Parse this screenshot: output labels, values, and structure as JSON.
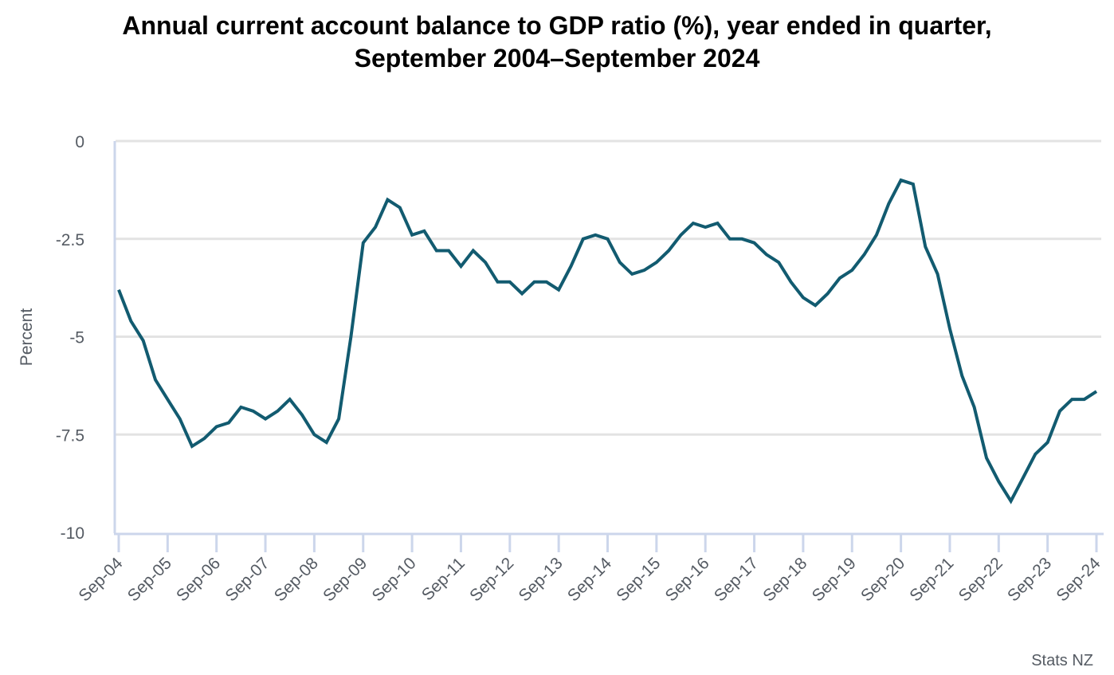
{
  "chart_data": {
    "type": "line",
    "title": "Annual current account balance to GDP ratio (%), year ended in quarter,",
    "subtitle": "September 2004–September 2024",
    "xlabel": "",
    "ylabel": "Percent",
    "ylim": [
      -10,
      0
    ],
    "yticks": [
      0,
      -2.5,
      -5,
      -7.5,
      -10
    ],
    "ytick_labels": [
      "0",
      "-2.5",
      "-5",
      "-7.5",
      "-10"
    ],
    "grid": true,
    "legend": "none",
    "source": "Stats NZ",
    "line_color": "#125b70",
    "xtick_labels": [
      "Sep-04",
      "Sep-05",
      "Sep-06",
      "Sep-07",
      "Sep-08",
      "Sep-09",
      "Sep-10",
      "Sep-11",
      "Sep-12",
      "Sep-13",
      "Sep-14",
      "Sep-15",
      "Sep-16",
      "Sep-17",
      "Sep-18",
      "Sep-19",
      "Sep-20",
      "Sep-21",
      "Sep-22",
      "Sep-23",
      "Sep-24"
    ],
    "x": [
      "Sep-04",
      "Dec-04",
      "Mar-05",
      "Jun-05",
      "Sep-05",
      "Dec-05",
      "Mar-06",
      "Jun-06",
      "Sep-06",
      "Dec-06",
      "Mar-07",
      "Jun-07",
      "Sep-07",
      "Dec-07",
      "Mar-08",
      "Jun-08",
      "Sep-08",
      "Dec-08",
      "Mar-09",
      "Jun-09",
      "Sep-09",
      "Dec-09",
      "Mar-10",
      "Jun-10",
      "Sep-10",
      "Dec-10",
      "Mar-11",
      "Jun-11",
      "Sep-11",
      "Dec-11",
      "Mar-12",
      "Jun-12",
      "Sep-12",
      "Dec-12",
      "Mar-13",
      "Jun-13",
      "Sep-13",
      "Dec-13",
      "Mar-14",
      "Jun-14",
      "Sep-14",
      "Dec-14",
      "Mar-15",
      "Jun-15",
      "Sep-15",
      "Dec-15",
      "Mar-16",
      "Jun-16",
      "Sep-16",
      "Dec-16",
      "Mar-17",
      "Jun-17",
      "Sep-17",
      "Dec-17",
      "Mar-18",
      "Jun-18",
      "Sep-18",
      "Dec-18",
      "Mar-19",
      "Jun-19",
      "Sep-19",
      "Dec-19",
      "Mar-20",
      "Jun-20",
      "Sep-20",
      "Dec-20",
      "Mar-21",
      "Jun-21",
      "Sep-21",
      "Dec-21",
      "Mar-22",
      "Jun-22",
      "Sep-22",
      "Dec-22",
      "Mar-23",
      "Jun-23",
      "Sep-23",
      "Dec-23",
      "Mar-24",
      "Jun-24",
      "Sep-24"
    ],
    "series": [
      {
        "name": "Current account balance to GDP ratio",
        "values": [
          -3.8,
          -4.6,
          -5.1,
          -6.1,
          -6.6,
          -7.1,
          -7.8,
          -7.6,
          -7.3,
          -7.2,
          -6.8,
          -6.9,
          -7.1,
          -6.9,
          -6.6,
          -7.0,
          -7.5,
          -7.7,
          -7.1,
          -5.0,
          -2.6,
          -2.2,
          -1.5,
          -1.7,
          -2.4,
          -2.3,
          -2.8,
          -2.8,
          -3.2,
          -2.8,
          -3.1,
          -3.6,
          -3.6,
          -3.9,
          -3.6,
          -3.6,
          -3.8,
          -3.2,
          -2.5,
          -2.4,
          -2.5,
          -3.1,
          -3.4,
          -3.3,
          -3.1,
          -2.8,
          -2.4,
          -2.1,
          -2.2,
          -2.1,
          -2.5,
          -2.5,
          -2.6,
          -2.9,
          -3.1,
          -3.6,
          -4.0,
          -4.2,
          -3.9,
          -3.5,
          -3.3,
          -2.9,
          -2.4,
          -1.6,
          -1.0,
          -1.1,
          -2.7,
          -3.4,
          -4.8,
          -6.0,
          -6.8,
          -8.1,
          -8.7,
          -9.2,
          -8.6,
          -8.0,
          -7.7,
          -6.9,
          -6.6,
          -6.6,
          -6.4
        ]
      }
    ]
  }
}
